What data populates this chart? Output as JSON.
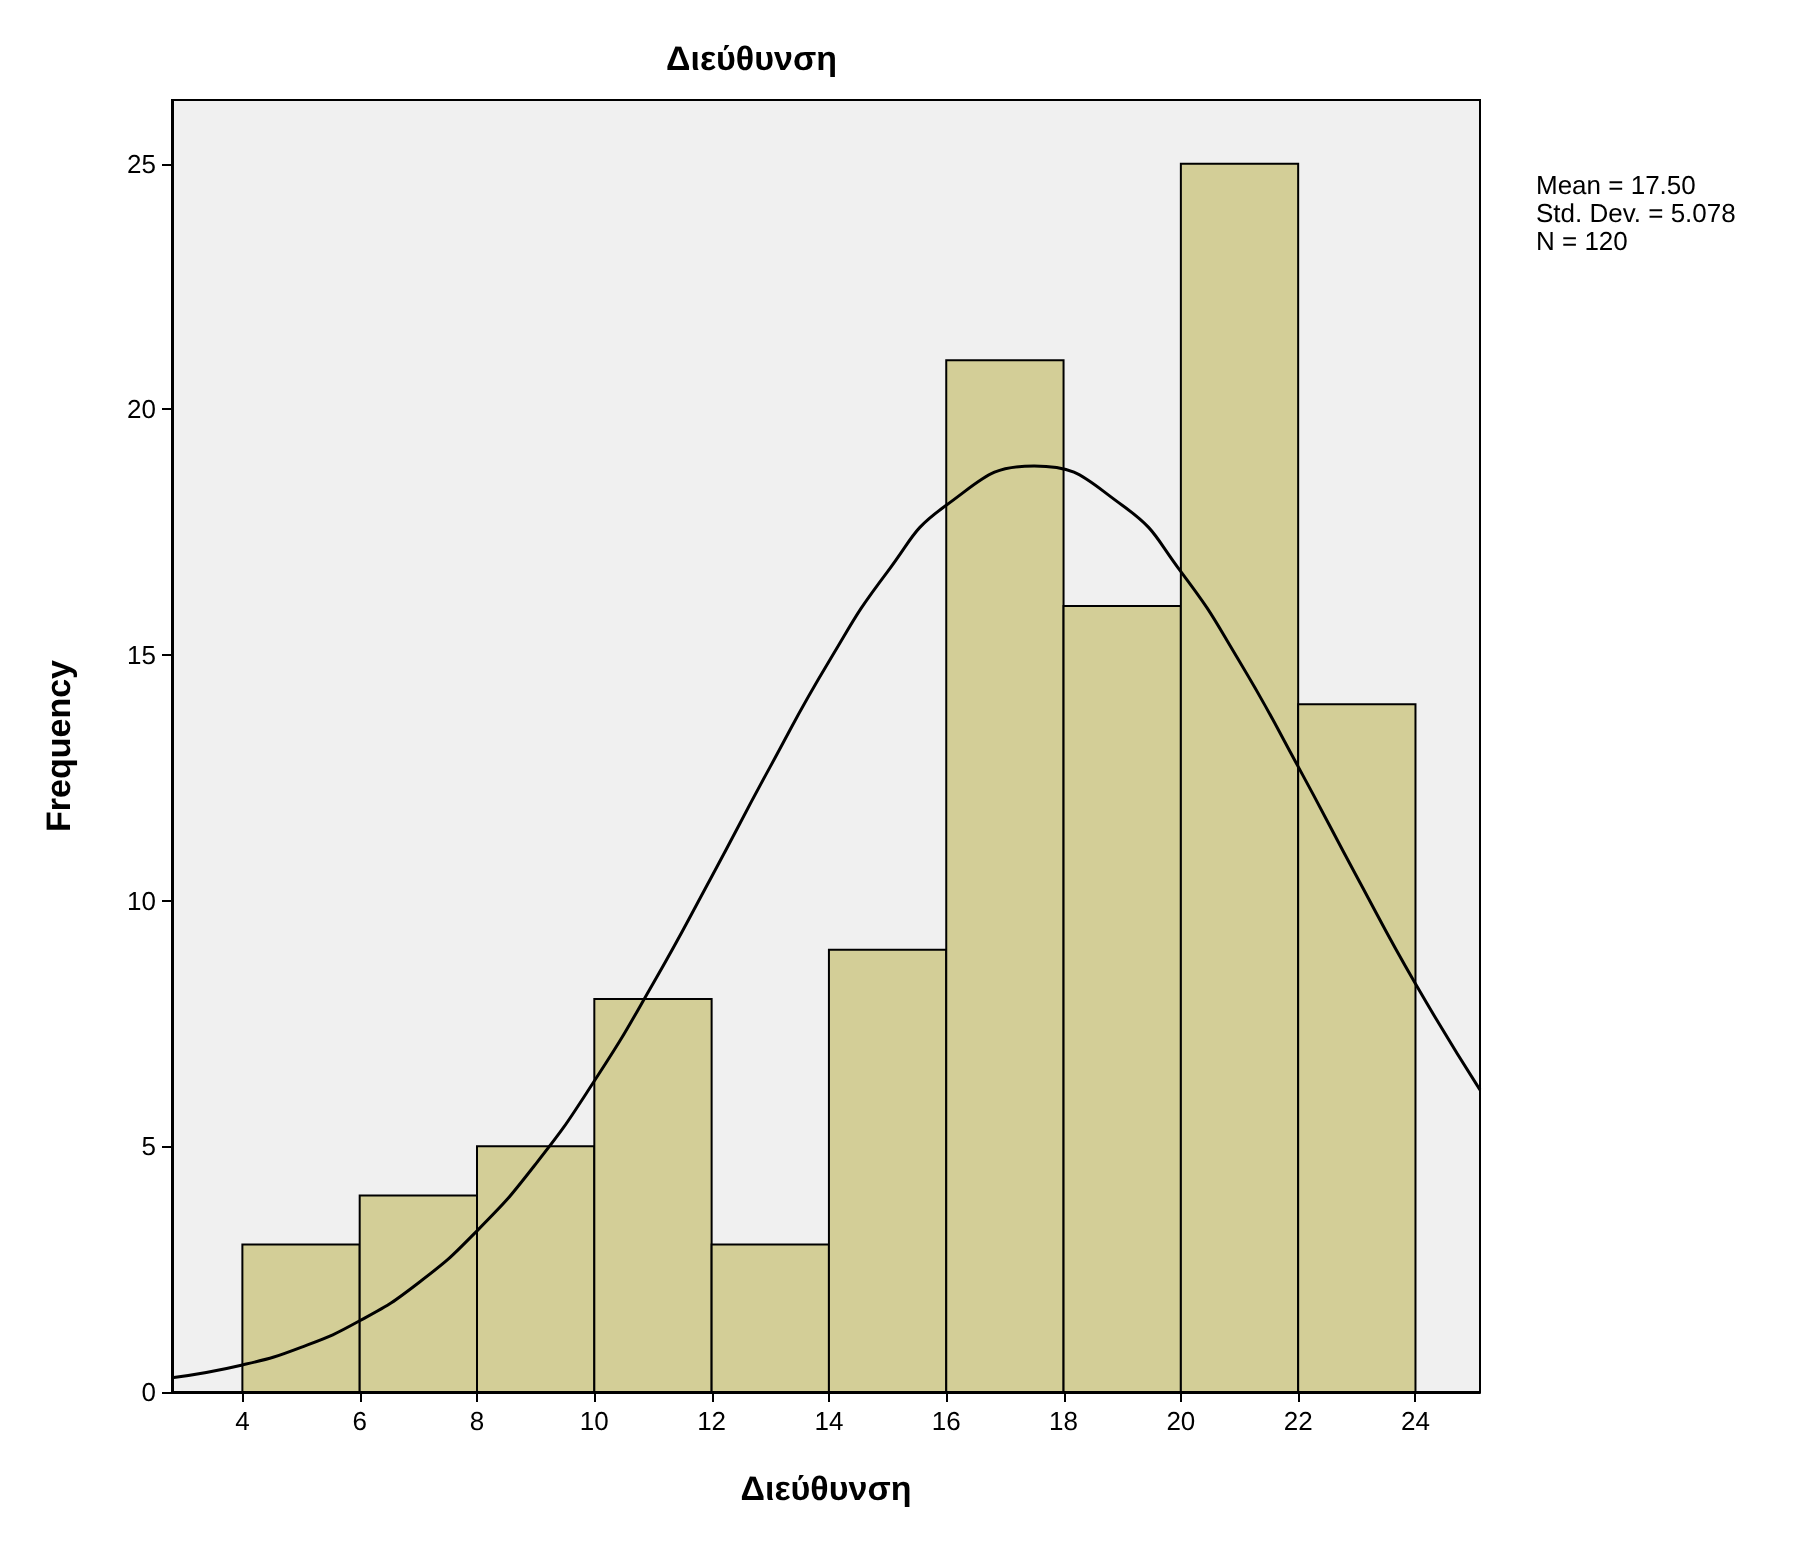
{
  "chart_data": {
    "type": "histogram",
    "title": "Διεύθυνση",
    "xlabel": "Διεύθυνση",
    "ylabel": "Frequency",
    "bins": [
      4,
      6,
      8,
      10,
      12,
      14,
      16,
      18,
      20,
      22,
      24
    ],
    "values": [
      3,
      4,
      5,
      8,
      3,
      9,
      21,
      16,
      25,
      14
    ],
    "color": "#d3ce97",
    "series": [
      {
        "type": "line",
        "color": "#000000",
        "x": [
          2.8,
          4,
          5,
          6,
          7,
          8,
          9,
          10,
          11,
          12,
          13,
          14,
          15,
          16,
          17.5,
          19,
          20,
          21,
          22,
          23,
          24,
          25.1
        ],
        "values": [
          0.29,
          0.55,
          0.91,
          1.45,
          2.22,
          3.28,
          4.64,
          6.33,
          8.31,
          10.49,
          12.73,
          14.87,
          16.7,
          18.05,
          18.85,
          18.05,
          16.7,
          14.87,
          12.73,
          10.49,
          8.31,
          6.15
        ]
      }
    ],
    "marker": "none",
    "line_style": "solid",
    "xlim": [
      2.8,
      25.1
    ],
    "xticks": [
      4,
      6,
      8,
      10,
      12,
      14,
      16,
      18,
      20,
      22,
      24
    ],
    "ylim": [
      0,
      26.3
    ],
    "yticks": [
      0,
      5,
      10,
      15,
      20,
      25
    ],
    "grid": false,
    "annotations": [
      "Mean = 17.50",
      "Std. Dev. = 5.078",
      "N = 120"
    ]
  }
}
